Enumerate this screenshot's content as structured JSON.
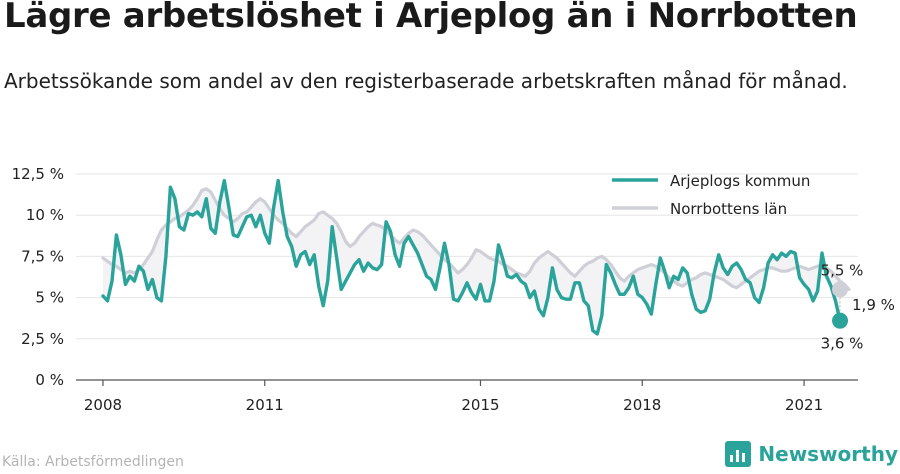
{
  "title": "Lägre arbetslöshet i Arjeplog än i Norrbotten",
  "subtitle": "Arbetssökande som andel av den registerbaserade arbetskraften månad för månad.",
  "source": "Källa: Arbetsförmedlingen",
  "brand": "Newsworthy",
  "colors": {
    "arjeplog": "#2aa39a",
    "norrbotten": "#cfcfd8",
    "fill": "#f3f3f5",
    "axis": "#555555",
    "grid": "#e6e6e6"
  },
  "icons": {
    "brand": "newsworthy-logo-icon"
  },
  "chart_data": {
    "type": "line",
    "title": "Lägre arbetslöshet i Arjeplog än i Norrbotten",
    "subtitle": "Arbetssökande som andel av den registerbaserade arbetskraften månad för månad.",
    "xlabel": "",
    "ylabel": "",
    "x_unit": "months since Jan 2008",
    "xlim": [
      -6,
      168
    ],
    "ylim": [
      0,
      12.5
    ],
    "xticks": [
      {
        "label": "2008",
        "x": 0
      },
      {
        "label": "2011",
        "x": 36
      },
      {
        "label": "2015",
        "x": 84
      },
      {
        "label": "2018",
        "x": 120
      },
      {
        "label": "2021",
        "x": 156
      }
    ],
    "yticks": [
      {
        "label": "0 %",
        "v": 0
      },
      {
        "label": "2,5 %",
        "v": 2.5
      },
      {
        "label": "5 %",
        "v": 5
      },
      {
        "label": "7,5 %",
        "v": 7.5
      },
      {
        "label": "10 %",
        "v": 10
      },
      {
        "label": "12,5 %",
        "v": 12.5
      }
    ],
    "grid": true,
    "legend": "top-right",
    "series": [
      {
        "name": "Arjeplogs kommun",
        "key": "arjeplog",
        "values": [
          5.1,
          4.8,
          6.0,
          8.8,
          7.6,
          5.8,
          6.3,
          6.0,
          6.9,
          6.6,
          5.5,
          6.1,
          5.0,
          4.8,
          7.5,
          11.7,
          11.0,
          9.3,
          9.1,
          10.1,
          10.0,
          10.2,
          9.9,
          11.0,
          9.2,
          8.9,
          10.8,
          12.1,
          10.5,
          8.8,
          8.7,
          9.3,
          9.9,
          10.0,
          9.3,
          10.0,
          8.9,
          8.3,
          10.5,
          12.1,
          10.2,
          8.7,
          8.1,
          6.9,
          7.6,
          7.8,
          7.0,
          7.6,
          5.7,
          4.5,
          6.0,
          9.3,
          7.4,
          5.5,
          6.0,
          6.5,
          7.0,
          7.3,
          6.6,
          7.1,
          6.8,
          6.7,
          7.0,
          9.6,
          9.0,
          7.6,
          6.9,
          8.3,
          8.7,
          8.2,
          7.7,
          7.0,
          6.3,
          6.1,
          5.5,
          6.8,
          8.3,
          7.0,
          4.9,
          4.8,
          5.3,
          5.9,
          5.3,
          4.9,
          5.8,
          4.8,
          4.8,
          6.0,
          8.2,
          7.3,
          6.3,
          6.2,
          6.4,
          6.0,
          5.8,
          5.0,
          5.4,
          4.3,
          3.9,
          5.0,
          6.8,
          5.5,
          5.0,
          4.9,
          4.9,
          5.9,
          5.9,
          4.8,
          4.5,
          3.0,
          2.8,
          3.9,
          7.0,
          6.5,
          5.8,
          5.2,
          5.2,
          5.6,
          6.3,
          5.2,
          5.0,
          4.6,
          4.0,
          5.8,
          7.4,
          6.6,
          5.6,
          6.3,
          6.1,
          6.8,
          6.5,
          5.2,
          4.3,
          4.1,
          4.2,
          4.9,
          6.5,
          7.6,
          6.8,
          6.4,
          6.9,
          7.1,
          6.7,
          6.1,
          5.9,
          5.0,
          4.7,
          5.6,
          7.1,
          7.6,
          7.3,
          7.7,
          7.5,
          7.8,
          7.7,
          6.2,
          5.8,
          5.5,
          4.8,
          5.4,
          7.7,
          6.3,
          5.7,
          4.8,
          3.6
        ]
      },
      {
        "name": "Norrbottens län",
        "key": "norrbotten",
        "values": [
          7.4,
          7.2,
          7.0,
          6.9,
          6.7,
          6.5,
          6.6,
          6.5,
          6.7,
          7.0,
          7.4,
          7.8,
          8.5,
          9.1,
          9.4,
          9.6,
          9.8,
          9.9,
          10.1,
          10.3,
          10.6,
          11.0,
          11.5,
          11.6,
          11.4,
          10.9,
          10.4,
          10.0,
          9.8,
          9.6,
          9.8,
          10.1,
          10.2,
          10.5,
          10.8,
          11.0,
          10.8,
          10.4,
          10.0,
          9.7,
          9.5,
          9.2,
          8.9,
          8.7,
          9.0,
          9.3,
          9.5,
          9.7,
          10.1,
          10.2,
          10.0,
          9.8,
          9.5,
          9.0,
          8.4,
          8.1,
          8.3,
          8.7,
          9.0,
          9.3,
          9.5,
          9.4,
          9.3,
          9.1,
          8.8,
          8.5,
          8.3,
          8.6,
          8.9,
          9.1,
          9.0,
          8.8,
          8.5,
          8.2,
          7.9,
          7.6,
          7.3,
          7.1,
          6.8,
          6.5,
          6.7,
          7.0,
          7.4,
          7.9,
          7.8,
          7.6,
          7.4,
          7.3,
          7.2,
          7.0,
          6.9,
          6.7,
          6.5,
          6.4,
          6.3,
          6.6,
          7.1,
          7.4,
          7.6,
          7.8,
          7.6,
          7.4,
          7.1,
          6.8,
          6.5,
          6.3,
          6.6,
          6.9,
          7.1,
          7.2,
          7.4,
          7.5,
          7.3,
          7.0,
          6.6,
          6.2,
          6.0,
          6.3,
          6.5,
          6.7,
          6.8,
          6.9,
          7.0,
          6.9,
          6.7,
          6.5,
          6.2,
          6.0,
          5.8,
          5.7,
          5.9,
          6.1,
          6.2,
          6.4,
          6.5,
          6.4,
          6.3,
          6.2,
          6.1,
          5.9,
          5.7,
          5.6,
          5.8,
          6.0,
          6.2,
          6.4,
          6.6,
          6.7,
          6.8,
          6.8,
          6.7,
          6.6,
          6.6,
          6.7,
          6.8,
          6.9,
          6.8,
          6.7,
          6.8,
          6.9,
          7.0,
          6.8,
          6.6,
          6.3,
          6.0,
          5.8,
          5.5
        ]
      }
    ],
    "end_labels": [
      {
        "key": "norrbotten",
        "text": "5,5 %",
        "value": 5.5
      },
      {
        "key": "arjeplog",
        "text": "3,6 %",
        "value": 3.6
      },
      {
        "key": "diff",
        "text": "1,9 %",
        "value": 1.9
      }
    ]
  }
}
